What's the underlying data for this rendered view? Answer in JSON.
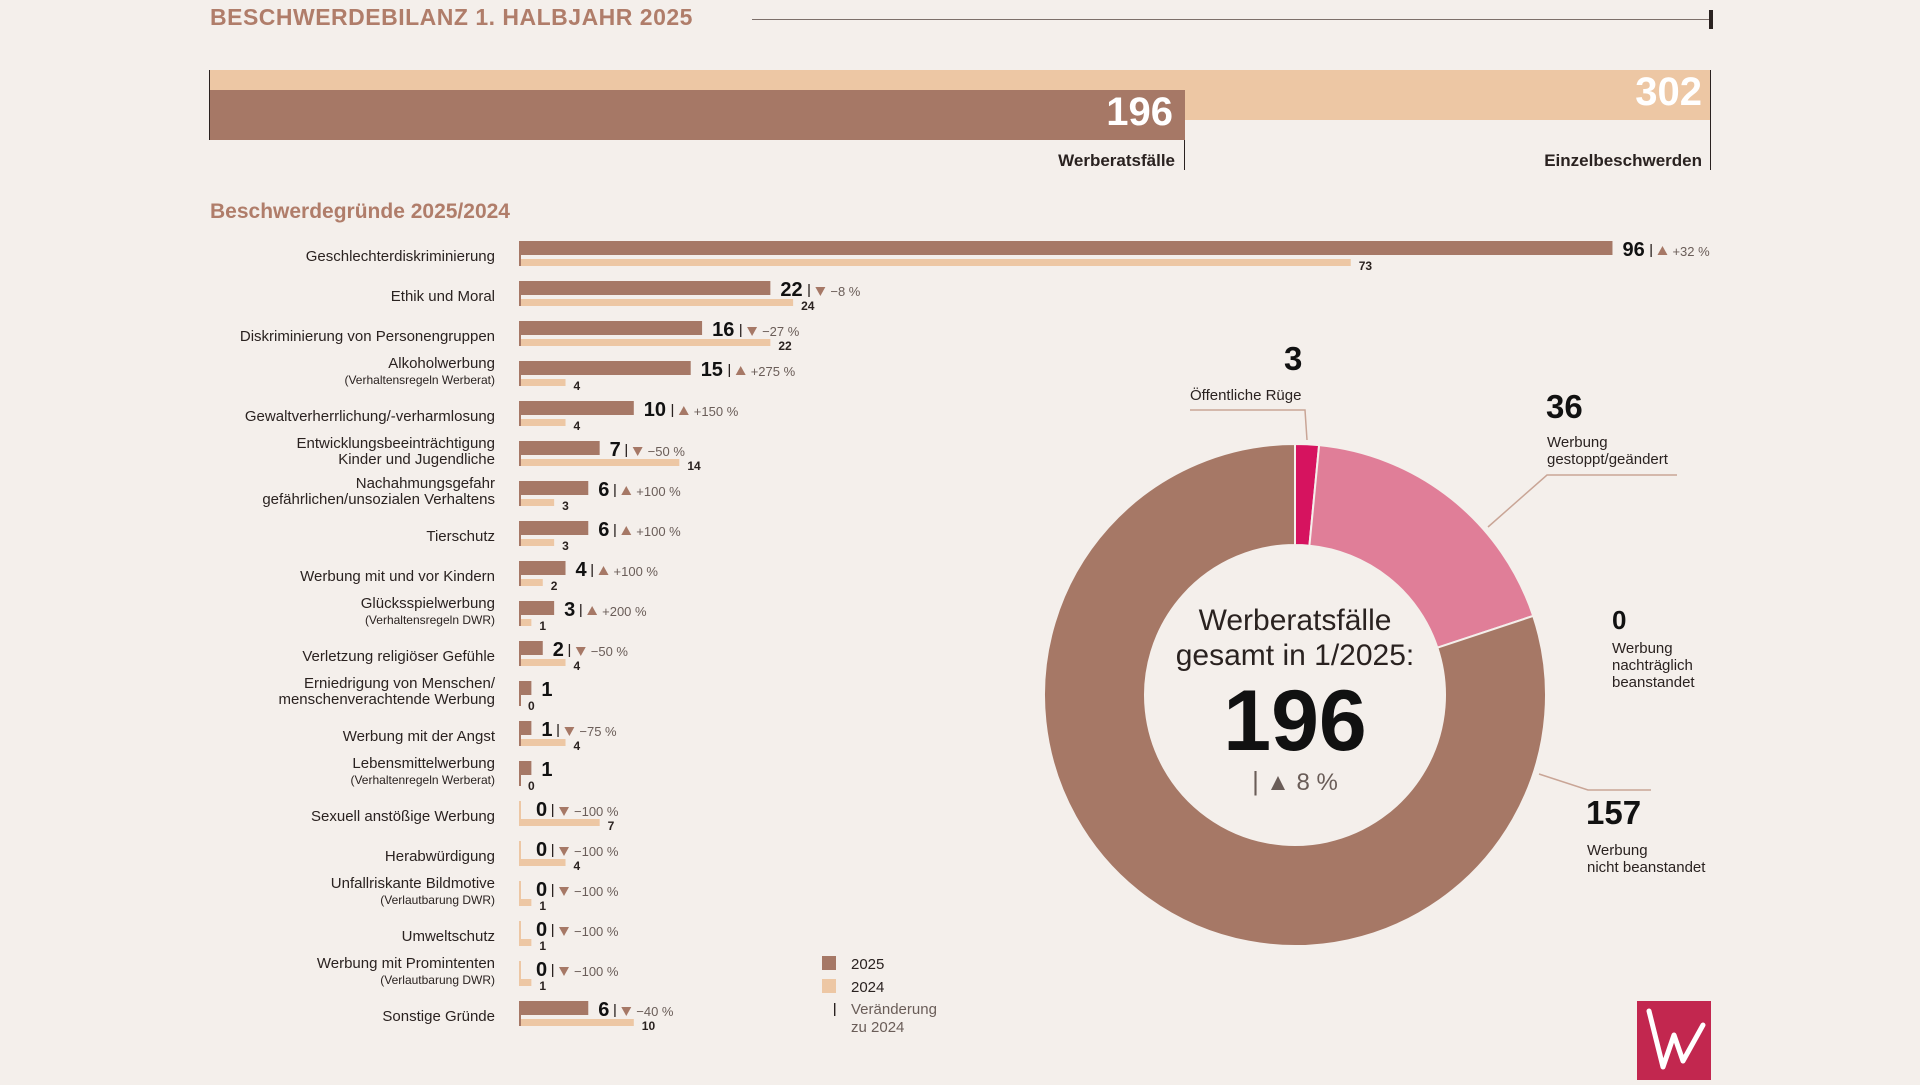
{
  "header": {
    "title": "BESCHWERDEBILANZ 1. HALBJAHR 2025"
  },
  "totals": {
    "werberat_value": "196",
    "werberat_label": "Werberatsfälle",
    "einzel_value": "302",
    "einzel_label": "Einzelbeschwerden"
  },
  "reasons_title": "Beschwerdegründe 2025/2024",
  "colors": {
    "bar_2025": "#a67866",
    "bar_2024": "#edc7a4",
    "title_accent": "#b07d6a",
    "donut_main": "#a67866",
    "donut_pink": "#e07e98",
    "donut_magenta": "#d6135f",
    "logo": "#c2274f"
  },
  "chart_data": [
    {
      "type": "bar",
      "orientation": "horizontal",
      "series": [
        {
          "name": "2025",
          "values": [
            96,
            22,
            16,
            15,
            10,
            7,
            6,
            6,
            4,
            3,
            2,
            1,
            1,
            1,
            0,
            0,
            0,
            0,
            0,
            6
          ]
        },
        {
          "name": "2024",
          "values": [
            73,
            24,
            22,
            4,
            4,
            14,
            3,
            3,
            2,
            1,
            4,
            0,
            4,
            0,
            7,
            4,
            1,
            1,
            1,
            10
          ]
        }
      ],
      "categories": [
        {
          "label": "Geschlechterdiskriminierung",
          "sub": ""
        },
        {
          "label": "Ethik und Moral",
          "sub": ""
        },
        {
          "label": "Diskriminierung von Personengruppen",
          "sub": ""
        },
        {
          "label": "Alkoholwerbung",
          "sub": "(Verhaltensregeln Werberat)"
        },
        {
          "label": "Gewaltverherrlichung/-verharmlosung",
          "sub": ""
        },
        {
          "label": "Entwicklungsbeeinträchtigung",
          "sub": "Kinder und Jugendliche",
          "sub_style": "normal"
        },
        {
          "label": "Nachahmungsgefahr",
          "sub": "gefährlichen/unsozialen Verhaltens",
          "sub_style": "normal"
        },
        {
          "label": "Tierschutz",
          "sub": ""
        },
        {
          "label": "Werbung mit und vor Kindern",
          "sub": ""
        },
        {
          "label": "Glücksspielwerbung",
          "sub": "(Verhaltensregeln DWR)"
        },
        {
          "label": "Verletzung religiöser Gefühle",
          "sub": ""
        },
        {
          "label": "Erniedrigung von Menschen/",
          "sub": "menschenverachtende Werbung",
          "sub_style": "normal"
        },
        {
          "label": "Werbung mit der Angst",
          "sub": ""
        },
        {
          "label": "Lebensmittelwerbung",
          "sub": "(Verhaltenregeln Werberat)"
        },
        {
          "label": "Sexuell anstößige Werbung",
          "sub": ""
        },
        {
          "label": "Herabwürdigung",
          "sub": ""
        },
        {
          "label": "Unfallriskante Bildmotive",
          "sub": "(Verlautbarung DWR)"
        },
        {
          "label": "Umweltschutz",
          "sub": ""
        },
        {
          "label": "Werbung mit Promintenten",
          "sub": "(Verlautbarung DWR)"
        },
        {
          "label": "Sonstige Gründe",
          "sub": ""
        }
      ],
      "changes": [
        {
          "dir": "up",
          "text": "+32 %"
        },
        {
          "dir": "down",
          "text": "−8 %"
        },
        {
          "dir": "down",
          "text": "−27 %"
        },
        {
          "dir": "up",
          "text": "+275 %"
        },
        {
          "dir": "up",
          "text": "+150 %"
        },
        {
          "dir": "down",
          "text": "−50 %"
        },
        {
          "dir": "up",
          "text": "+100 %"
        },
        {
          "dir": "up",
          "text": "+100 %"
        },
        {
          "dir": "up",
          "text": "+100 %"
        },
        {
          "dir": "up",
          "text": "+200 %"
        },
        {
          "dir": "down",
          "text": "−50 %"
        },
        null,
        {
          "dir": "down",
          "text": "−75 %"
        },
        null,
        {
          "dir": "down",
          "text": "−100 %"
        },
        {
          "dir": "down",
          "text": "−100 %"
        },
        {
          "dir": "down",
          "text": "−100 %"
        },
        {
          "dir": "down",
          "text": "−100 %"
        },
        {
          "dir": "down",
          "text": "−100 %"
        },
        {
          "dir": "down",
          "text": "−40 %"
        }
      ],
      "legend": [
        {
          "label": "2025"
        },
        {
          "label": "2024"
        },
        {
          "label": "Veränderung\nzu 2024"
        }
      ]
    },
    {
      "type": "pie",
      "variant": "donut",
      "slices": [
        {
          "value": 3,
          "label": "Öffentliche Rüge",
          "color": "#d6135f"
        },
        {
          "value": 36,
          "label": "Werbung\ngestoppt/geändert",
          "color": "#e07e98"
        },
        {
          "value": 0,
          "label": "Werbung\nnachträglich\nbeanstandet",
          "color": "#c24f76"
        },
        {
          "value": 157,
          "label": "Werbung\nnicht beanstandet",
          "color": "#a67866"
        }
      ],
      "center": {
        "title": "Werberatsfälle\ngesamt in 1/2025:",
        "value": "196",
        "change_arrow": "▲",
        "change": "8 %"
      }
    }
  ]
}
